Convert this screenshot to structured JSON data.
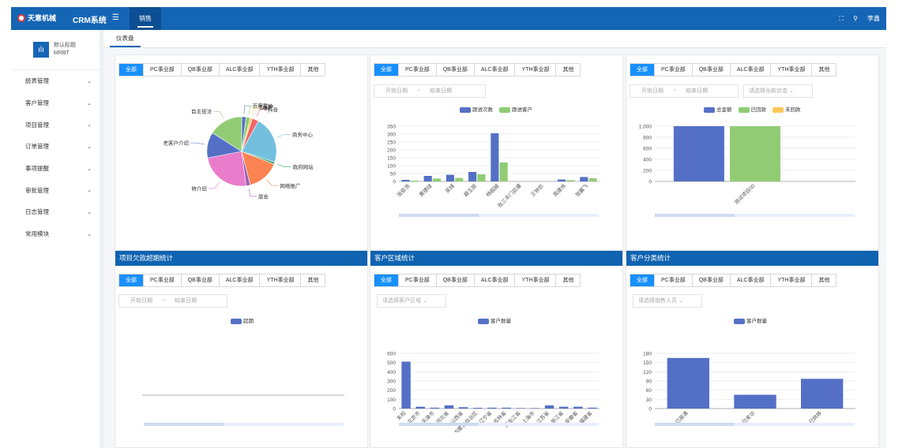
{
  "header": {
    "logo_text": "天意机械",
    "app_title": "CRM系统",
    "menu_icon": "menu-icon",
    "active_tab": "销售",
    "user_name": "李鑫"
  },
  "sidebar": {
    "brand_title": "默认标题",
    "brand_sub": "MRBT",
    "items": [
      "统表管理",
      "客户管理",
      "项目管理",
      "订单管理",
      "事项提醒",
      "审批管理",
      "日志管理",
      "常用模块"
    ]
  },
  "page_tab": "仪表盘",
  "colors": {
    "primary": "#1565b5",
    "active_seg": "#1890ff",
    "blue": "#5470c6",
    "green": "#91cc75",
    "yellow": "#fac858"
  },
  "dept_tabs": [
    "全部",
    "PC事业部",
    "QB事业部",
    "ALC事业部",
    "YTH事业部",
    "其他"
  ],
  "date_start": "开始日期",
  "date_sep": "~",
  "date_end": "结束日期",
  "panels": {
    "p1": {
      "chart_data": {
        "type": "pie",
        "labels": [
          "百度竞价",
          "老客户",
          "电商",
          "抖音",
          "商务中心",
          "政府网站",
          "网络推广",
          "展会",
          "转介绍",
          "老客户介绍",
          "自主接洽"
        ],
        "values": [
          2,
          2,
          1,
          3,
          22,
          1,
          15,
          2,
          24,
          12,
          16
        ]
      }
    },
    "p2": {
      "legend": [
        "跟进次数",
        "跟进客户"
      ],
      "chart_data": {
        "type": "bar",
        "categories": [
          "张俊浩",
          "黄德球",
          "吴靖",
          "薛玉丽",
          "杨超越",
          "张三丰门后谭",
          "王钟凯",
          "周建伟",
          "张翼飞"
        ],
        "series": [
          {
            "name": "跟进次数",
            "values": [
              10,
              35,
              42,
              60,
              305,
              0,
              0,
              12,
              28
            ]
          },
          {
            "name": "跟进客户",
            "values": [
              5,
              18,
              22,
              45,
              120,
              0,
              0,
              8,
              20
            ]
          }
        ],
        "yticks": [
          "0",
          "50",
          "100",
          "150",
          "200",
          "250",
          "300",
          "350"
        ],
        "ylim": [
          0,
          350
        ]
      }
    },
    "p3": {
      "select": "请选择全款状态",
      "legend": [
        "总金额",
        "已回款",
        "未回款"
      ],
      "chart_data": {
        "type": "bar",
        "categories": [
          "测试项目00"
        ],
        "series": [
          {
            "name": "总金额",
            "values": [
              1000
            ]
          },
          {
            "name": "已回款",
            "values": [
              1000
            ]
          },
          {
            "name": "未回款",
            "values": [
              0
            ]
          }
        ],
        "yticks": [
          "0",
          "200",
          "400",
          "600",
          "800",
          "1,000"
        ],
        "ylim": [
          0,
          1000
        ]
      }
    },
    "p4": {
      "title": "项目欠款超期统计",
      "legend": [
        "超期"
      ],
      "chart_data": {
        "type": "bar",
        "categories": [],
        "series": [
          {
            "name": "超期",
            "values": []
          }
        ]
      }
    },
    "p5": {
      "title": "客户区域统计",
      "select": "请选择客户区域",
      "legend": [
        "客户数量"
      ],
      "chart_data": {
        "type": "bar",
        "categories": [
          "未知",
          "北京市",
          "天津市",
          "河北省",
          "山西省",
          "内蒙古自治区",
          "辽宁省",
          "吉林省",
          "黑龙江省",
          "上海市",
          "江苏省",
          "浙江省",
          "安徽省",
          "福建省"
        ],
        "series": [
          {
            "name": "客户数量",
            "values": [
              510,
              20,
              10,
              35,
              15,
              8,
              10,
              10,
              5,
              5,
              35,
              20,
              20,
              10
            ]
          }
        ],
        "yticks": [
          "0",
          "100",
          "200",
          "300",
          "400",
          "500",
          "600"
        ],
        "ylim": [
          0,
          600
        ]
      }
    },
    "p6": {
      "title": "客户分类统计",
      "select": "请选择销售人员",
      "legend": [
        "客户数量"
      ],
      "chart_data": {
        "type": "bar",
        "categories": [
          "已报满",
          "已来访",
          "已转移"
        ],
        "series": [
          {
            "name": "客户数量",
            "values": [
              165,
              45,
              97
            ]
          }
        ],
        "yticks": [
          "0",
          "30",
          "60",
          "90",
          "120",
          "150",
          "180"
        ],
        "ylim": [
          0,
          180
        ]
      }
    }
  }
}
